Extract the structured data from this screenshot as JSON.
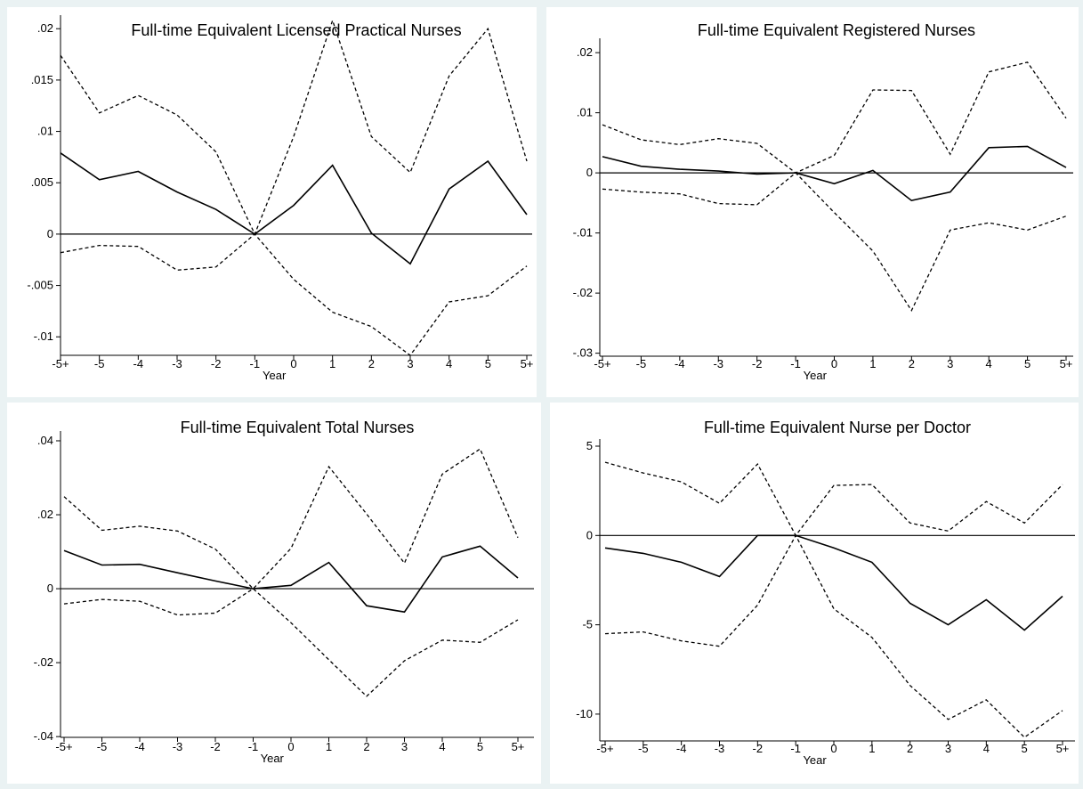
{
  "x_ticks": [
    "-5+",
    "-5",
    "-4",
    "-3",
    "-2",
    "-1",
    "0",
    "1",
    "2",
    "3",
    "4",
    "5",
    "5+"
  ],
  "chart_data": [
    {
      "type": "line",
      "title": "Full-time Equivalent Licensed Practical Nurses",
      "xlabel": "Year",
      "ylabel": "",
      "y_ticks": [
        ".02",
        ".015",
        ".01",
        ".005",
        "0",
        "-.005",
        "-.01"
      ],
      "y_tick_values": [
        0.02,
        0.015,
        0.01,
        0.005,
        0,
        -0.005,
        -0.01
      ],
      "ylim": [
        -0.0118,
        0.0208
      ],
      "x": [
        "-5+",
        "-5",
        "-4",
        "-3",
        "-2",
        "-1",
        "0",
        "1",
        "2",
        "3",
        "4",
        "5",
        "5+"
      ],
      "series": [
        {
          "role": "upper",
          "style": "dashed",
          "values": [
            0.0174,
            0.0118,
            0.0135,
            0.0116,
            0.008,
            0.0,
            0.0095,
            0.0208,
            0.0095,
            0.006,
            0.0154,
            0.02,
            0.0071
          ]
        },
        {
          "role": "estimate",
          "style": "solid",
          "values": [
            0.0079,
            0.0053,
            0.0061,
            0.0041,
            0.0024,
            0.0,
            0.0028,
            0.0067,
            0.0001,
            -0.0029,
            0.0044,
            0.0071,
            0.0019
          ]
        },
        {
          "role": "lower",
          "style": "dashed",
          "values": [
            -0.0018,
            -0.0011,
            -0.0012,
            -0.0035,
            -0.0032,
            0.0,
            -0.0044,
            -0.0076,
            -0.009,
            -0.0118,
            -0.0066,
            -0.006,
            -0.0031
          ]
        }
      ]
    },
    {
      "type": "line",
      "title": "Full-time Equivalent Registered Nurses",
      "xlabel": "Year",
      "ylabel": "",
      "y_ticks": [
        ".02",
        ".01",
        "0",
        "-.01",
        "-.02",
        "-.03"
      ],
      "y_tick_values": [
        0.02,
        0.01,
        0,
        -0.01,
        -0.02,
        -0.03
      ],
      "ylim": [
        -0.0305,
        0.0215
      ],
      "x": [
        "-5+",
        "-5",
        "-4",
        "-3",
        "-2",
        "-1",
        "0",
        "1",
        "2",
        "3",
        "4",
        "5",
        "5+"
      ],
      "series": [
        {
          "role": "upper",
          "style": "dashed",
          "values": [
            0.008,
            0.0055,
            0.0047,
            0.0057,
            0.0049,
            0.0,
            0.0029,
            0.0138,
            0.0137,
            0.0031,
            0.0168,
            0.0184,
            0.0091
          ]
        },
        {
          "role": "estimate",
          "style": "solid",
          "values": [
            0.0027,
            0.0011,
            0.0006,
            0.0003,
            -0.0002,
            0.0,
            -0.0018,
            0.0004,
            -0.0046,
            -0.0032,
            0.0042,
            0.0044,
            0.0009
          ]
        },
        {
          "role": "lower",
          "style": "dashed",
          "values": [
            -0.0027,
            -0.0032,
            -0.0035,
            -0.0051,
            -0.0053,
            0.0,
            -0.0066,
            -0.013,
            -0.0229,
            -0.0095,
            -0.0083,
            -0.0095,
            -0.0072
          ]
        }
      ]
    },
    {
      "type": "line",
      "title": "Full-time Equivalent Total Nurses",
      "xlabel": "Year",
      "ylabel": "",
      "y_ticks": [
        ".04",
        ".02",
        "0",
        "-.02",
        "-.04"
      ],
      "y_tick_values": [
        0.04,
        0.02,
        0,
        -0.02,
        -0.04
      ],
      "ylim": [
        -0.0402,
        0.0412
      ],
      "x": [
        "-5+",
        "-5",
        "-4",
        "-3",
        "-2",
        "-1",
        "0",
        "1",
        "2",
        "3",
        "4",
        "5",
        "5+"
      ],
      "series": [
        {
          "role": "upper",
          "style": "dashed",
          "values": [
            0.0249,
            0.0158,
            0.0169,
            0.0156,
            0.0107,
            0.0,
            0.0109,
            0.033,
            0.0202,
            0.0069,
            0.031,
            0.0378,
            0.0138
          ]
        },
        {
          "role": "estimate",
          "style": "solid",
          "values": [
            0.0103,
            0.0064,
            0.0066,
            0.0043,
            0.0021,
            0.0,
            0.0009,
            0.0071,
            -0.0046,
            -0.0063,
            0.0086,
            0.0115,
            0.0029
          ]
        },
        {
          "role": "lower",
          "style": "dashed",
          "values": [
            -0.0041,
            -0.0029,
            -0.0034,
            -0.0071,
            -0.0066,
            0.0,
            -0.0092,
            -0.0192,
            -0.0291,
            -0.0195,
            -0.0139,
            -0.0145,
            -0.0084
          ]
        }
      ]
    },
    {
      "type": "line",
      "title": "Full-time Equivalent Nurse per Doctor",
      "xlabel": "Year",
      "ylabel": "",
      "y_ticks": [
        "5",
        "0",
        "-5",
        "-10"
      ],
      "y_tick_values": [
        5,
        0,
        -5,
        -10
      ],
      "ylim": [
        -11.5,
        5.1
      ],
      "x": [
        "-5+",
        "-5",
        "-4",
        "-3",
        "-2",
        "-1",
        "0",
        "1",
        "2",
        "3",
        "4",
        "5",
        "5+"
      ],
      "series": [
        {
          "role": "upper",
          "style": "dashed",
          "values": [
            4.1,
            3.5,
            3.0,
            1.8,
            4.0,
            0.0,
            2.8,
            2.85,
            0.7,
            0.25,
            1.9,
            0.7,
            2.85
          ]
        },
        {
          "role": "estimate",
          "style": "solid",
          "values": [
            -0.7,
            -1.0,
            -1.5,
            -2.3,
            0.0,
            0.0,
            -0.7,
            -1.5,
            -3.8,
            -5.0,
            -3.6,
            -5.3,
            -3.4
          ]
        },
        {
          "role": "lower",
          "style": "dashed",
          "values": [
            -5.5,
            -5.4,
            -5.9,
            -6.2,
            -3.9,
            0.0,
            -4.1,
            -5.7,
            -8.4,
            -10.3,
            -9.2,
            -11.3,
            -9.8
          ]
        }
      ]
    }
  ]
}
